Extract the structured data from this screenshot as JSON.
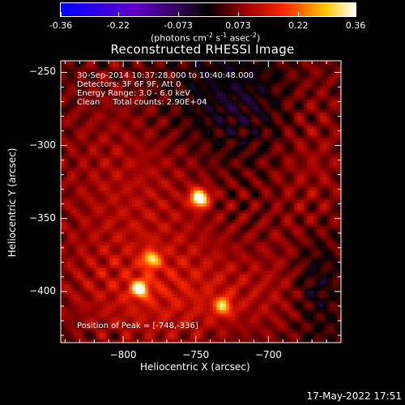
{
  "colorbar": {
    "ticks": [
      "-0.36",
      "-0.22",
      "-0.073",
      "0.073",
      "0.22",
      "0.36"
    ],
    "units_base": "(photons cm",
    "units_exp1": "-2",
    "units_mid": " s",
    "units_exp2": "-1",
    "units_mid2": " asec",
    "units_exp3": "-2",
    "units_close": ")"
  },
  "title": "Reconstructed RHESSI Image",
  "annotations": {
    "line1": "30-Sep-2014 10:37:28.000 to 10:40:48.000",
    "line2": "Detectors: 3F 6F 9F, Att 0",
    "line3": "Energy Range: 3.0 - 6.0 keV",
    "line4": "Clean     Total counts: 2.90E+04",
    "peak": "Position of Peak = [-748,-336]"
  },
  "footer": {
    "timestamp": "17-May-2022 17:51"
  },
  "chart_data": {
    "type": "heatmap",
    "title": "Reconstructed RHESSI Image",
    "xlabel": "Heliocentric X (arcsec)",
    "ylabel": "Heliocentric Y (arcsec)",
    "xlim": [
      -843,
      -650
    ],
    "ylim": [
      -435,
      -242
    ],
    "x_ticks": [
      -800,
      -750,
      -700
    ],
    "y_ticks": [
      -250,
      -300,
      -350,
      -400
    ],
    "colorbar_range": [
      -0.36,
      0.36
    ],
    "colorbar_ticks": [
      -0.36,
      -0.22,
      -0.073,
      0.073,
      0.22,
      0.36
    ],
    "peak_position": [
      -748,
      -336
    ],
    "sources": [
      {
        "x": -748,
        "y": -336,
        "intensity": 0.36
      },
      {
        "x": -789,
        "y": -398,
        "intensity": 0.27
      },
      {
        "x": -781,
        "y": -378,
        "intensity": 0.21
      },
      {
        "x": -732,
        "y": -410,
        "intensity": 0.2
      }
    ]
  }
}
